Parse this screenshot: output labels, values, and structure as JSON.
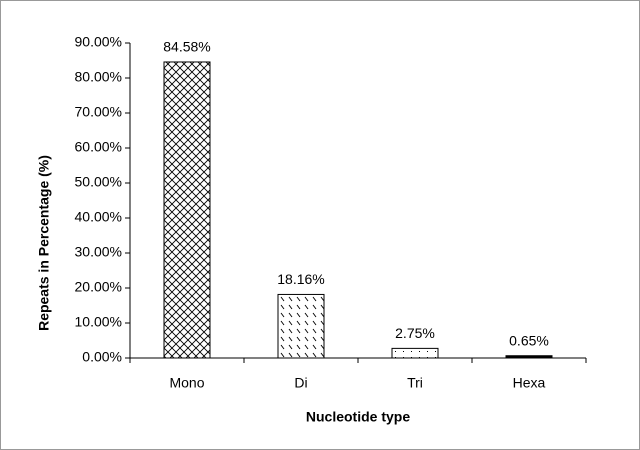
{
  "chart_data": {
    "type": "bar",
    "x_label": "Nucleotide type",
    "y_label": "Repeats in Percentage (%)",
    "categories": [
      "Mono",
      "Di",
      "Tri",
      "Hexa"
    ],
    "values": [
      84.58,
      18.16,
      2.75,
      0.65
    ],
    "value_labels": [
      "84.58%",
      "18.16%",
      "2.75%",
      "0.65%"
    ],
    "ylim": [
      0,
      90
    ],
    "yticks": [
      {
        "value": 0,
        "label": "0.00%"
      },
      {
        "value": 10,
        "label": "10.00%"
      },
      {
        "value": 20,
        "label": "20.00%"
      },
      {
        "value": 30,
        "label": "30.00%"
      },
      {
        "value": 40,
        "label": "40.00%"
      },
      {
        "value": 50,
        "label": "50.00%"
      },
      {
        "value": 60,
        "label": "60.00%"
      },
      {
        "value": 70,
        "label": "70.00%"
      },
      {
        "value": 80,
        "label": "80.00%"
      },
      {
        "value": 90,
        "label": "90.00%"
      }
    ],
    "grid": false
  }
}
